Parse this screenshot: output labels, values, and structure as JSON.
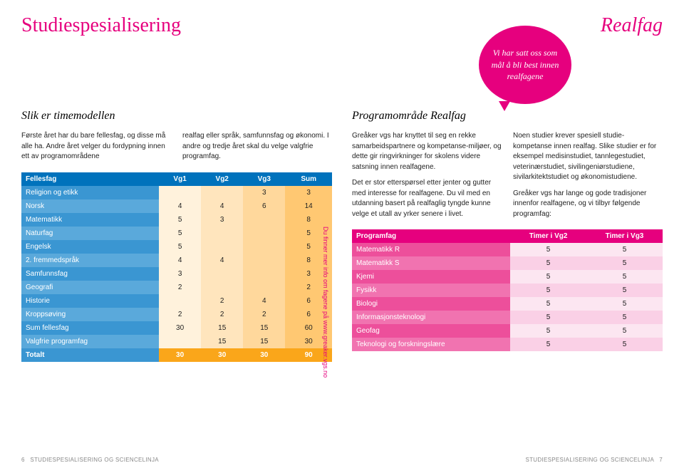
{
  "header": {
    "left": "Studiespesialisering",
    "right": "Realfag"
  },
  "bubble": "Vi har satt oss som mål å bli best innen realfagene",
  "leftSection": {
    "title": "Slik er timemodellen",
    "para1": "Første året har du bare fellesfag, og disse må alle ha. Andre året velger du fordypning innen ett av programområdene",
    "para2": "realfag eller språk, samfunnsfag og økonomi. I andre og tredje året skal du velge valgfrie programfag."
  },
  "rightSection": {
    "title": "Programområde Realfag",
    "para1": "Greåker vgs har knyttet til seg en rekke samarbeidspartnere og kompetanse-miljøer, og dette gir ringvirkninger for skolens videre satsning innen realfagene.",
    "para2": "Det er stor etterspørsel etter jenter og gutter med interesse for realfagene. Du vil med en utdanning basert på realfaglig tyngde kunne velge et utall av yrker senere i livet.",
    "para3": "Noen studier krever spesiell studie-kompetanse innen realfag. Slike studier er for eksempel medisinstudiet, tannlegestudiet, veterinærstudiet, sivilingeniørstudiene, sivilarkitektstudiet og økonomistudiene.",
    "para4": "Greåker vgs har lange og gode tradisjoner innenfor realfagene, og vi tilbyr følgende programfag:"
  },
  "leftTable": {
    "headers": [
      "Fellesfag",
      "Vg1",
      "Vg2",
      "Vg3",
      "Sum"
    ],
    "rows": [
      [
        "Religion og etikk",
        "",
        "",
        "3",
        "3"
      ],
      [
        "Norsk",
        "4",
        "4",
        "6",
        "14"
      ],
      [
        "Matematikk",
        "5",
        "3",
        "",
        "8"
      ],
      [
        "Naturfag",
        "5",
        "",
        "",
        "5"
      ],
      [
        "Engelsk",
        "5",
        "",
        "",
        "5"
      ],
      [
        "2. fremmedspråk",
        "4",
        "4",
        "",
        "8"
      ],
      [
        "Samfunnsfag",
        "3",
        "",
        "",
        "3"
      ],
      [
        "Geografi",
        "2",
        "",
        "",
        "2"
      ],
      [
        "Historie",
        "",
        "2",
        "4",
        "6"
      ],
      [
        "Kroppsøving",
        "2",
        "2",
        "2",
        "6"
      ],
      [
        "Sum fellesfag",
        "30",
        "15",
        "15",
        "60"
      ],
      [
        "Valgfrie programfag",
        "",
        "15",
        "15",
        "30"
      ]
    ],
    "total": [
      "Totalt",
      "30",
      "30",
      "30",
      "90"
    ]
  },
  "sidenote": "Du finner mer info om fagene på www.greaker.vgs.no",
  "rightTable": {
    "headers": [
      "Programfag",
      "Timer i Vg2",
      "Timer i Vg3"
    ],
    "rows": [
      [
        "Matematikk R",
        "5",
        "5"
      ],
      [
        "Matematikk S",
        "5",
        "5"
      ],
      [
        "Kjemi",
        "5",
        "5"
      ],
      [
        "Fysikk",
        "5",
        "5"
      ],
      [
        "Biologi",
        "5",
        "5"
      ],
      [
        "Informasjonsteknologi",
        "5",
        "5"
      ],
      [
        "Geofag",
        "5",
        "5"
      ],
      [
        "Teknologi og forskningslære",
        "5",
        "5"
      ]
    ]
  },
  "footer": {
    "left_num": "6",
    "left_text": "STUDIESPESIALISERING OG SCIENCELINJA",
    "right_text": "STUDIESPESIALISERING OG SCIENCELINJA",
    "right_num": "7"
  },
  "colors": {
    "pink": "#e6007e",
    "blue": "#0072bc",
    "orange": "#faa61a"
  }
}
